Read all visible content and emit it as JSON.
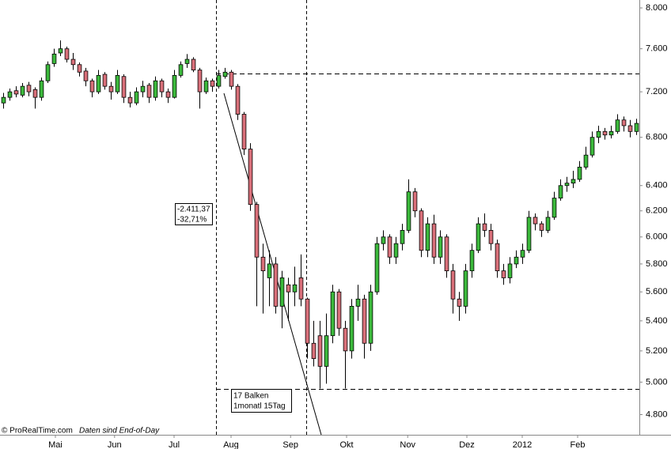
{
  "chart_data": {
    "type": "candlestick",
    "log_scale": true,
    "ylim": [
      4680,
      8080
    ],
    "yticks": [
      {
        "value": 8000,
        "label": "8.000"
      },
      {
        "value": 7600,
        "label": "7.600"
      },
      {
        "value": 7200,
        "label": "7.200"
      },
      {
        "value": 6800,
        "label": "6.800"
      },
      {
        "value": 6400,
        "label": "6.400"
      },
      {
        "value": 6200,
        "label": "6.200"
      },
      {
        "value": 6000,
        "label": "6.000"
      },
      {
        "value": 5800,
        "label": "5.800"
      },
      {
        "value": 5600,
        "label": "5.600"
      },
      {
        "value": 5400,
        "label": "5.400"
      },
      {
        "value": 5200,
        "label": "5.200"
      },
      {
        "value": 5000,
        "label": "5.000"
      },
      {
        "value": 4800,
        "label": "4.800"
      }
    ],
    "xlim": [
      -0.5,
      100.5
    ],
    "xticks": [
      {
        "value": 8.25,
        "label": "Mai"
      },
      {
        "value": 17.6,
        "label": "Jun"
      },
      {
        "value": 27,
        "label": "Jul"
      },
      {
        "value": 36,
        "label": "Aug"
      },
      {
        "value": 45.4,
        "label": "Sep"
      },
      {
        "value": 54.25,
        "label": "Okt"
      },
      {
        "value": 63.9,
        "label": "Nov"
      },
      {
        "value": 73.25,
        "label": "Dez"
      },
      {
        "value": 82,
        "label": "2012"
      },
      {
        "value": 90.75,
        "label": "Feb"
      }
    ],
    "up_color": "#3cb93c",
    "down_color": "#d9707a",
    "open": [
      7100,
      7150,
      7210,
      7170,
      7260,
      7220,
      7150,
      7300,
      7460,
      7560,
      7600,
      7500,
      7450,
      7390,
      7300,
      7200,
      7360,
      7250,
      7200,
      7340,
      7150,
      7100,
      7200,
      7260,
      7150,
      7300,
      7200,
      7150,
      7350,
      7460,
      7500,
      7400,
      7200,
      7300,
      7250,
      7340,
      7380,
      7250,
      7000,
      6700,
      6250,
      5850,
      5700,
      5800,
      5500,
      5650,
      5600,
      5700,
      5550,
      5250,
      5300,
      5100,
      5300,
      5600,
      5350,
      5200,
      5500,
      5550,
      5250,
      5600,
      5950,
      6000,
      5850,
      5950,
      6050,
      6350,
      6200,
      5900,
      6100,
      5850,
      6000,
      5750,
      5550,
      5500,
      5750,
      5900,
      6100,
      6050,
      5950,
      5750,
      5700,
      5800,
      5850,
      5900,
      6150,
      6100,
      6050,
      6150,
      6300,
      6400,
      6420,
      6450,
      6550,
      6650,
      6800,
      6850,
      6820,
      6850,
      6950,
      6900,
      6850
    ],
    "high": [
      7190,
      7230,
      7250,
      7280,
      7290,
      7240,
      7330,
      7480,
      7600,
      7680,
      7620,
      7560,
      7470,
      7420,
      7320,
      7400,
      7380,
      7290,
      7400,
      7360,
      7200,
      7240,
      7300,
      7280,
      7340,
      7320,
      7230,
      7400,
      7480,
      7550,
      7520,
      7420,
      7330,
      7320,
      7400,
      7420,
      7400,
      7270,
      7020,
      6750,
      6270,
      5950,
      5900,
      5850,
      5750,
      5700,
      5780,
      5870,
      5560,
      5400,
      5400,
      5450,
      5650,
      5620,
      5400,
      5550,
      5650,
      5580,
      5650,
      6000,
      6050,
      6020,
      6000,
      6100,
      6450,
      6380,
      6220,
      6150,
      6170,
      6050,
      6020,
      5800,
      5600,
      5800,
      5950,
      6150,
      6180,
      6100,
      5980,
      5800,
      5850,
      5900,
      5950,
      6200,
      6180,
      6120,
      6200,
      6350,
      6450,
      6470,
      6520,
      6600,
      6720,
      6850,
      6900,
      6880,
      6900,
      7000,
      6980,
      6950,
      6960
    ],
    "low": [
      7050,
      7120,
      7150,
      7150,
      7160,
      7050,
      7120,
      7280,
      7430,
      7530,
      7470,
      7400,
      7340,
      7250,
      7150,
      7180,
      7220,
      7130,
      7180,
      7100,
      7060,
      7080,
      7150,
      7100,
      7120,
      7150,
      7100,
      7140,
      7330,
      7420,
      7380,
      7050,
      7180,
      7200,
      7230,
      7320,
      7220,
      6950,
      6650,
      6200,
      5500,
      5450,
      5500,
      5450,
      5350,
      5400,
      5500,
      5500,
      5150,
      5100,
      4960,
      4990,
      5250,
      5300,
      4960,
      5150,
      5400,
      5150,
      5200,
      5580,
      5900,
      5800,
      5800,
      5900,
      6030,
      6150,
      5850,
      5850,
      5800,
      5800,
      5700,
      5450,
      5400,
      5450,
      5700,
      5880,
      6000,
      5900,
      5700,
      5650,
      5660,
      5770,
      5800,
      5880,
      6050,
      6000,
      6030,
      6130,
      6280,
      6350,
      6380,
      6430,
      6530,
      6630,
      6750,
      6780,
      6790,
      6830,
      6850,
      6800,
      6820
    ],
    "close": [
      7150,
      7200,
      7180,
      7250,
      7200,
      7150,
      7300,
      7450,
      7550,
      7600,
      7500,
      7450,
      7380,
      7300,
      7200,
      7350,
      7250,
      7200,
      7350,
      7150,
      7100,
      7200,
      7250,
      7150,
      7300,
      7200,
      7150,
      7350,
      7450,
      7500,
      7400,
      7200,
      7300,
      7250,
      7350,
      7380,
      7250,
      7000,
      6700,
      6250,
      5850,
      5750,
      5800,
      5500,
      5700,
      5600,
      5650,
      5550,
      5250,
      5150,
      5100,
      5300,
      5600,
      5350,
      5200,
      5500,
      5550,
      5250,
      5600,
      5950,
      6000,
      5850,
      5950,
      6050,
      6350,
      6200,
      5900,
      6100,
      5850,
      6000,
      5750,
      5550,
      5500,
      5750,
      5900,
      6100,
      6050,
      5950,
      5750,
      5700,
      5800,
      5850,
      5900,
      6150,
      6100,
      6050,
      6150,
      6300,
      6400,
      6420,
      6450,
      6550,
      6650,
      6800,
      6850,
      6820,
      6850,
      6950,
      6900,
      6850,
      6920
    ],
    "hlines": [
      7366,
      4959
    ],
    "annotations": [
      {
        "lines": [
          "-2.411,37",
          "-32,71%"
        ]
      },
      {
        "lines": [
          "17 Balken",
          "1monatl 15Tag"
        ]
      }
    ],
    "source": "© ProRealTime.com",
    "note": "Daten sind End-of-Day"
  }
}
